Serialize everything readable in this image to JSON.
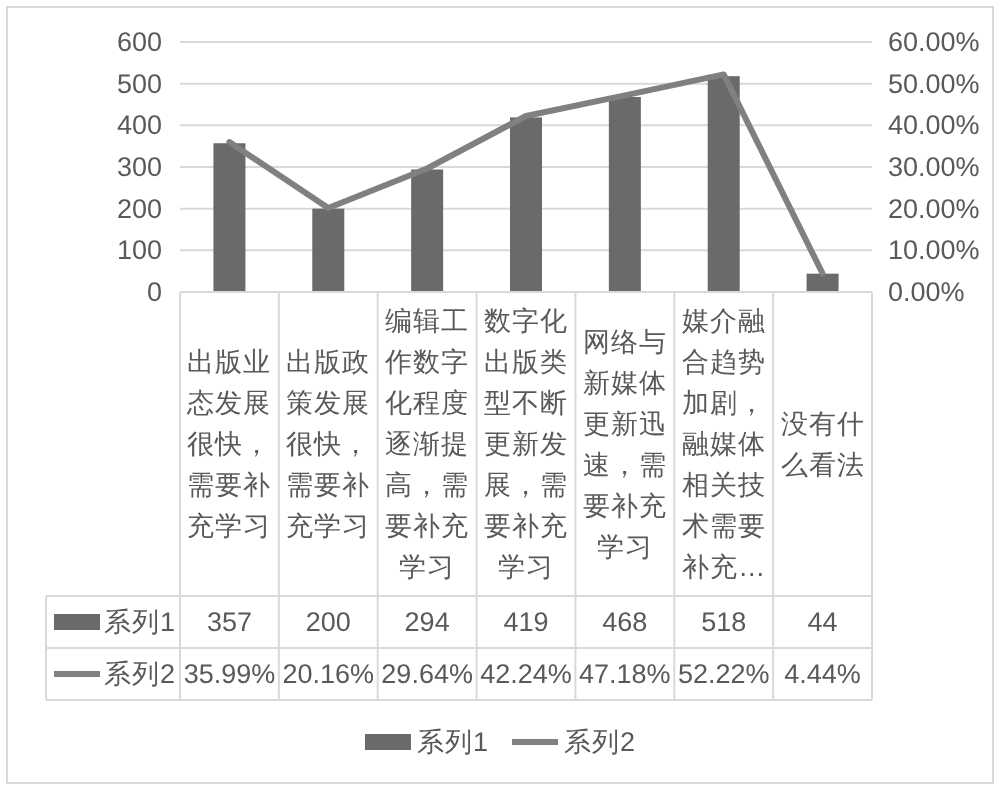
{
  "chart_data": {
    "type": "bar",
    "categories": [
      "出版业态发展很快，需要补充学习",
      "出版政策发展很快，需要补充学习",
      "编辑工作数字化程度逐渐提高，需要补充学习",
      "数字化出版类型不断更新发展，需要补充学习",
      "网络与新媒体更新迅速，需要补充学习",
      "媒介融合趋势加剧，融媒体相关技术需要补充…",
      "没有什么看法"
    ],
    "series": [
      {
        "name": "系列1",
        "color": "#6a6a6a",
        "values": [
          357,
          200,
          294,
          419,
          468,
          518,
          44
        ],
        "value_labels": [
          "357",
          "200",
          "294",
          "419",
          "468",
          "518",
          "44"
        ]
      },
      {
        "name": "系列2",
        "type": "line",
        "axis": "y2",
        "color": "#808080",
        "values": [
          35.99,
          20.16,
          29.64,
          42.24,
          47.18,
          52.22,
          4.44
        ],
        "value_labels": [
          "35.99%",
          "20.16%",
          "29.64%",
          "42.24%",
          "47.18%",
          "52.22%",
          "4.44%"
        ]
      }
    ],
    "ylim": [
      0,
      600
    ],
    "yticks": [
      0,
      100,
      200,
      300,
      400,
      500,
      600
    ],
    "y2lim": [
      0,
      60
    ],
    "y2ticks": [
      {
        "value": 0,
        "label": "0.00%"
      },
      {
        "value": 10,
        "label": "10.00%"
      },
      {
        "value": 20,
        "label": "20.00%"
      },
      {
        "value": 30,
        "label": "30.00%"
      },
      {
        "value": 40,
        "label": "40.00%"
      },
      {
        "value": 50,
        "label": "50.00%"
      },
      {
        "value": 60,
        "label": "60.00%"
      }
    ],
    "grid": "y",
    "legend": "bottom"
  }
}
